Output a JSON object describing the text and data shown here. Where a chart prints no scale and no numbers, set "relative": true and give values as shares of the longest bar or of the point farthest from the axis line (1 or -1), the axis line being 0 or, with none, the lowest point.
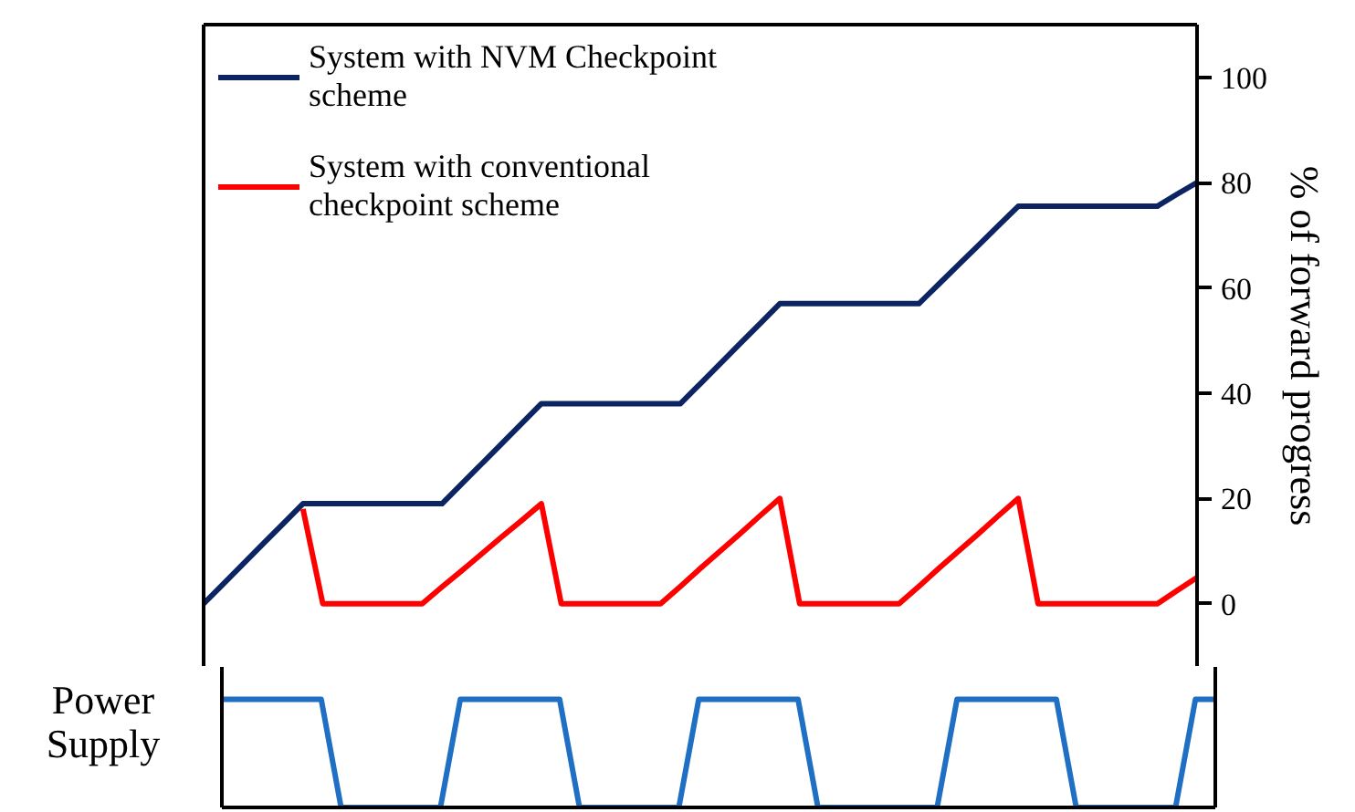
{
  "chart_data": [
    {
      "type": "line",
      "ylabel": "% of forward progress",
      "categories": [
        null,
        null,
        null,
        null,
        null,
        null,
        null,
        null,
        null,
        null,
        null,
        null,
        null,
        null,
        null,
        null,
        null,
        null,
        null,
        null,
        null,
        null,
        null,
        null,
        null,
        null,
        null,
        null,
        null,
        null,
        null,
        null,
        null,
        null,
        null,
        null,
        null,
        null,
        null,
        null,
        null,
        null,
        null,
        null,
        null,
        null,
        null,
        null,
        null,
        null,
        null
      ],
      "ylim": [
        -12,
        110
      ],
      "yticks": [
        0,
        20,
        40,
        60,
        80,
        100
      ],
      "tick_labels": "y",
      "grid": false,
      "legend": "top left",
      "series": [
        {
          "name": "System with NVM Checkpoint\nscheme",
          "color": "#0d2463",
          "values": [
            0,
            3.8,
            7.6,
            11.4,
            15.2,
            19,
            19,
            19,
            19,
            19,
            19,
            19,
            19,
            22.8,
            26.6,
            30.4,
            34.2,
            38,
            38,
            38,
            38,
            38,
            38,
            38,
            38,
            41.8,
            45.6,
            49.4,
            53.2,
            57,
            57,
            57,
            57,
            57,
            57,
            57,
            57,
            60.7,
            64.4,
            68.1,
            71.8,
            75.5,
            75.5,
            75.5,
            75.5,
            75.5,
            75.5,
            75.5,
            75.5,
            77.8,
            80
          ]
        },
        {
          "name": "System with conventional\ncheckpoint scheme",
          "color": "#ff0000",
          "values": [
            null,
            null,
            null,
            null,
            null,
            18,
            0,
            0,
            0,
            0,
            0,
            0,
            3.2,
            6.3,
            9.5,
            12.7,
            15.8,
            19,
            0,
            0,
            0,
            0,
            0,
            0,
            3.3,
            6.7,
            10,
            13.3,
            16.7,
            20,
            0,
            0,
            0,
            0,
            0,
            0,
            3.3,
            6.7,
            10,
            13.3,
            16.7,
            20,
            0,
            0,
            0,
            0,
            0,
            0,
            0,
            2.5,
            5
          ]
        }
      ]
    },
    {
      "type": "line",
      "relative": true,
      "ylabel": "Power Supply",
      "categories": [
        null,
        null,
        null,
        null,
        null,
        null,
        null,
        null,
        null,
        null,
        null,
        null,
        null,
        null,
        null,
        null,
        null,
        null,
        null,
        null,
        null,
        null,
        null,
        null,
        null,
        null,
        null,
        null,
        null,
        null,
        null,
        null,
        null,
        null,
        null,
        null,
        null,
        null,
        null,
        null,
        null,
        null,
        null,
        null,
        null,
        null,
        null,
        null,
        null,
        null,
        null
      ],
      "tick_labels": false,
      "grid": false,
      "series": [
        {
          "color": "#1f6fc4",
          "values": [
            1,
            1,
            1,
            1,
            1,
            1,
            0,
            0,
            0,
            0,
            0,
            0,
            1,
            1,
            1,
            1,
            1,
            1,
            0,
            0,
            0,
            0,
            0,
            0,
            1,
            1,
            1,
            1,
            1,
            1,
            0,
            0,
            0,
            0,
            0,
            0,
            0,
            1,
            1,
            1,
            1,
            1,
            1,
            0,
            0,
            0,
            0,
            0,
            0,
            1,
            1
          ]
        }
      ]
    }
  ]
}
